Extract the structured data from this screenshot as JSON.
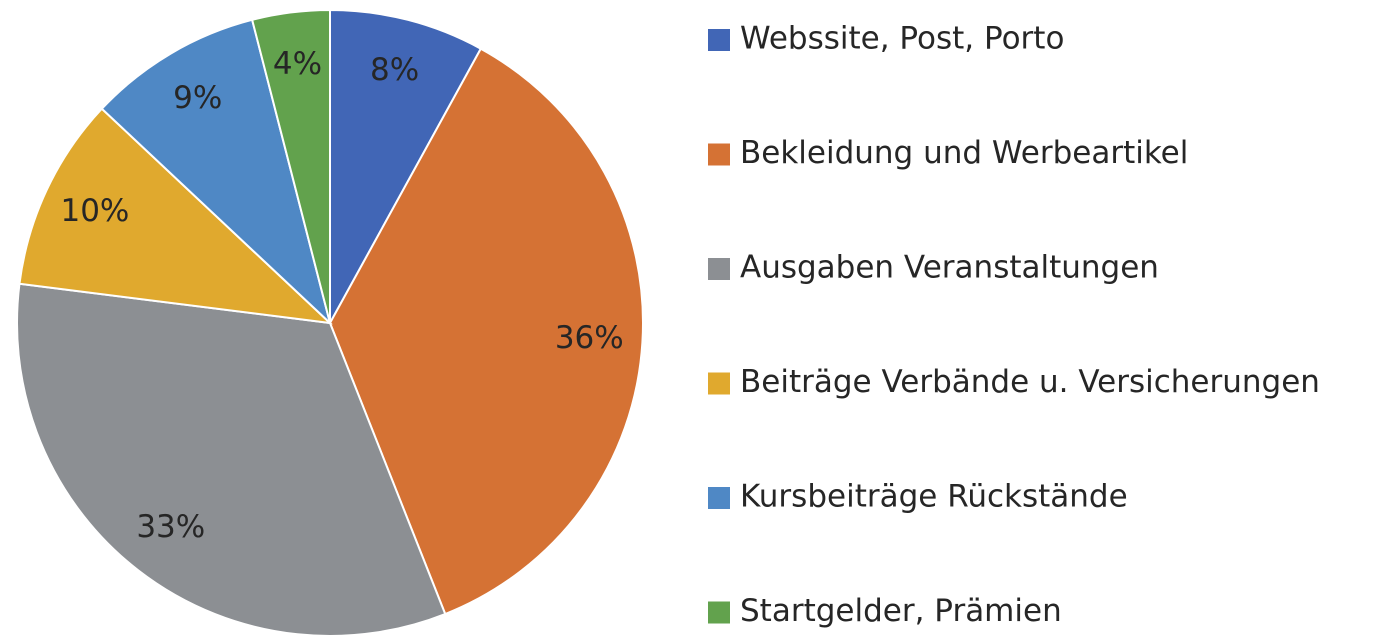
{
  "chart_data": {
    "type": "pie",
    "categories": [
      "Webssite, Post, Porto",
      "Bekleidung und Werbeartikel",
      "Ausgaben Veranstaltungen",
      "Beiträge Verbände u. Versicherungen",
      "Kursbeiträge Rückstände",
      "Startgelder, Prämien"
    ],
    "values": [
      8,
      36,
      33,
      10,
      9,
      4
    ],
    "value_labels": [
      "8%",
      "36%",
      "33%",
      "10%",
      "9%",
      "4%"
    ],
    "colors": [
      "#4166b6",
      "#d57234",
      "#8c8f93",
      "#e0a92e",
      "#4f88c5",
      "#62a24d"
    ],
    "legend": "right"
  }
}
